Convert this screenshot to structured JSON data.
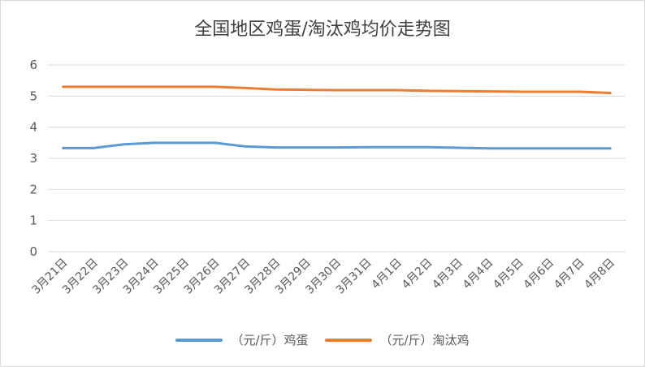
{
  "chart_data": {
    "type": "line",
    "title": "全国地区鸡蛋/淘汰鸡均价走势图",
    "xlabel": "",
    "ylabel": "",
    "ylim": [
      0,
      6
    ],
    "yticks": [
      0,
      1,
      2,
      3,
      4,
      5,
      6
    ],
    "grid": true,
    "legend_position": "bottom",
    "categories": [
      "3月21日",
      "3月22日",
      "3月23日",
      "3月24日",
      "3月25日",
      "3月26日",
      "3月27日",
      "3月28日",
      "3月29日",
      "3月30日",
      "3月31日",
      "4月1日",
      "4月2日",
      "4月3日",
      "4月4日",
      "4月5日",
      "4月6日",
      "4月7日",
      "4月8日"
    ],
    "series": [
      {
        "name": "（元/斤）鸡蛋",
        "color": "#5b9bd5",
        "values": [
          3.33,
          3.33,
          3.45,
          3.5,
          3.5,
          3.5,
          3.38,
          3.35,
          3.35,
          3.35,
          3.36,
          3.36,
          3.36,
          3.34,
          3.32,
          3.32,
          3.32,
          3.32,
          3.32
        ]
      },
      {
        "name": "（元/斤）淘汰鸡",
        "color": "#ed7d31",
        "values": [
          5.3,
          5.3,
          5.3,
          5.3,
          5.3,
          5.3,
          5.26,
          5.21,
          5.2,
          5.19,
          5.19,
          5.19,
          5.17,
          5.16,
          5.15,
          5.14,
          5.14,
          5.14,
          5.1
        ]
      }
    ]
  }
}
